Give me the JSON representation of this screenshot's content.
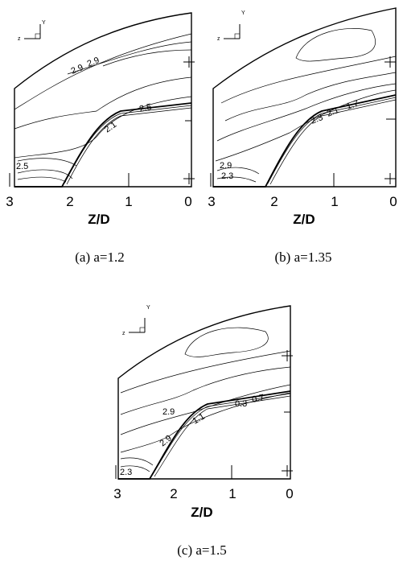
{
  "axis_title": "Z/D",
  "tick_labels": [
    "3",
    "2",
    "1",
    "0"
  ],
  "triad": {
    "z": "z",
    "y": "Y"
  },
  "panels": [
    {
      "caption": "(a) a=1.2",
      "contour_labels": [
        "2.9",
        "2.9",
        "2.5",
        "2.1",
        "2.5"
      ]
    },
    {
      "caption": "(b) a=1.35",
      "contour_labels": [
        "2.9",
        "2.3",
        "2.3",
        "2.1",
        "1.7"
      ]
    },
    {
      "caption": "(c) a=1.5",
      "contour_labels": [
        "2.9",
        "2.9",
        "1.1",
        "0.3",
        "0.7",
        "2.3"
      ]
    }
  ]
}
